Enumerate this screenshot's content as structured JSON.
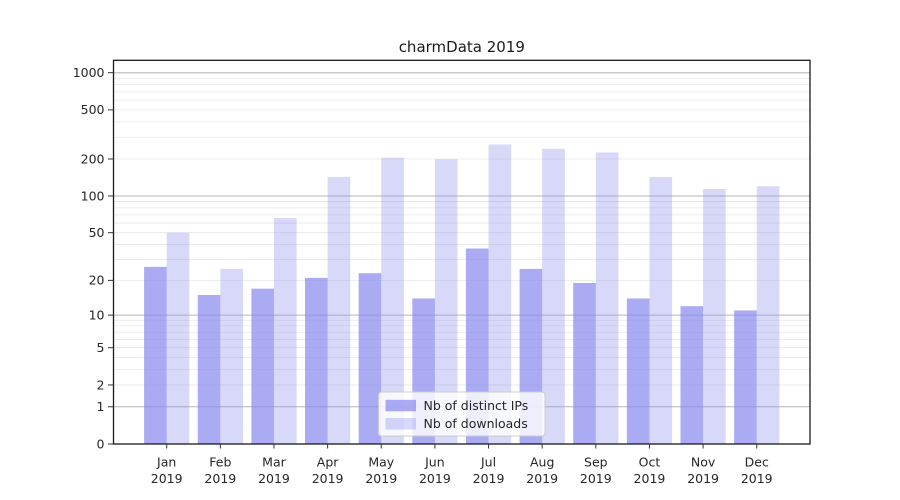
{
  "chart_data": {
    "type": "bar",
    "title": "charmData 2019",
    "categories": [
      "Jan",
      "Feb",
      "Mar",
      "Apr",
      "May",
      "Jun",
      "Jul",
      "Aug",
      "Sep",
      "Oct",
      "Nov",
      "Dec"
    ],
    "x_sublabel": "2019",
    "series": [
      {
        "name": "Nb of distinct IPs",
        "color": "#8888ee",
        "opacity": 0.7,
        "values": [
          26,
          15,
          17,
          21,
          23,
          14,
          37,
          25,
          19,
          14,
          12,
          11
        ]
      },
      {
        "name": "Nb of downloads",
        "color": "#8888ee",
        "opacity": 0.33,
        "values": [
          50,
          25,
          66,
          143,
          205,
          199,
          262,
          242,
          226,
          143,
          114,
          120
        ]
      }
    ],
    "yscale": "log1p",
    "yticks": [
      0,
      1,
      2,
      5,
      10,
      20,
      50,
      100,
      200,
      500,
      1000
    ],
    "major_grid_values": [
      1,
      10,
      100,
      1000
    ],
    "minor_grid_values": [
      2,
      3,
      4,
      5,
      6,
      7,
      8,
      9,
      20,
      30,
      40,
      50,
      60,
      70,
      80,
      90,
      200,
      300,
      400,
      500,
      600,
      700,
      800,
      900
    ],
    "ylim": [
      0,
      1270
    ],
    "xlabel": "",
    "ylabel": "",
    "grid": "on",
    "legend_position": "lower center",
    "colors": {
      "major_grid": "#b6b6b6",
      "minor_grid": "#e7e7e7",
      "spine": "#1a1a1a",
      "tick": "#333333"
    }
  }
}
